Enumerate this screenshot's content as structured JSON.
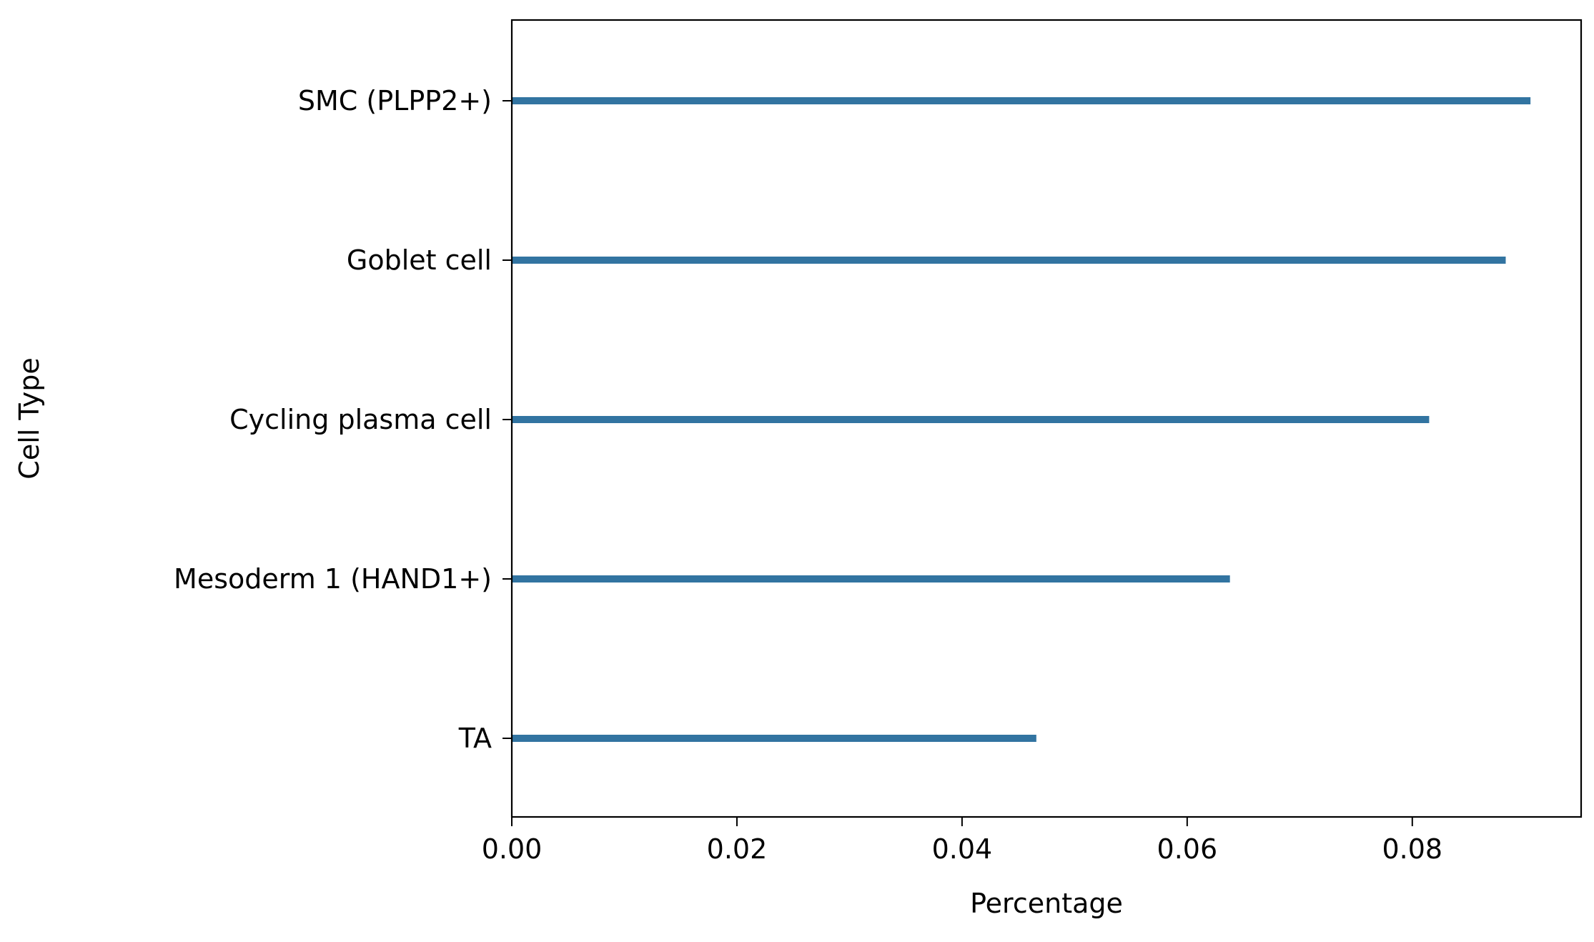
{
  "chart_data": {
    "type": "bar",
    "orientation": "horizontal",
    "title": "",
    "xlabel": "Percentage",
    "ylabel": "Cell Type",
    "categories": [
      "SMC (PLPP2+)",
      "Goblet cell",
      "Cycling plasma cell",
      "Mesoderm 1 (HAND1+)",
      "TA"
    ],
    "values": [
      0.0905,
      0.0883,
      0.0815,
      0.0638,
      0.0466
    ],
    "xlim": [
      0,
      0.095
    ],
    "xticks": [
      0.0,
      0.02,
      0.04,
      0.06,
      0.08
    ],
    "xtick_labels": [
      "0.00",
      "0.02",
      "0.04",
      "0.06",
      "0.08"
    ],
    "grid": false,
    "legend": "none",
    "bar_color": "#3274a1"
  }
}
